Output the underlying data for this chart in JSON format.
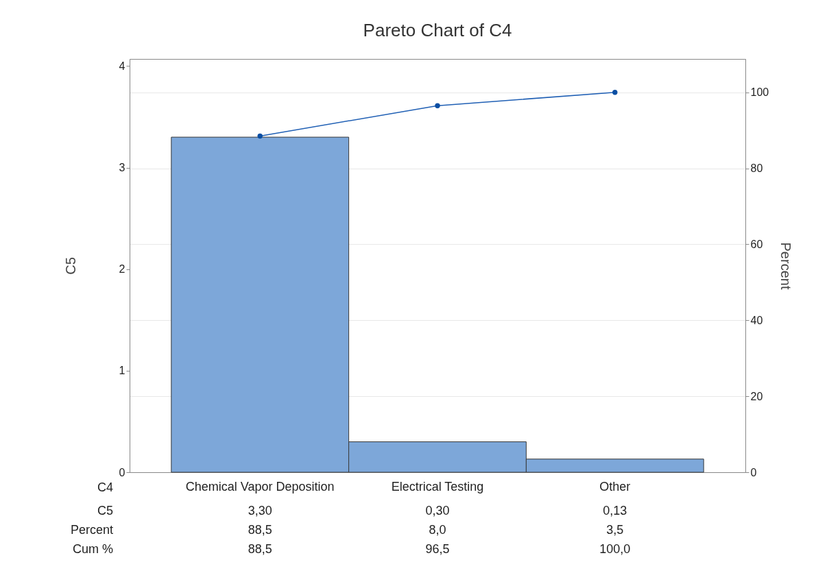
{
  "chart_data": {
    "type": "bar",
    "title": "Pareto Chart of C4",
    "xlabel": "C4",
    "ylabel": "C5",
    "y2label": "Percent",
    "categories": [
      "Chemical Vapor Deposition",
      "Electrical Testing",
      "Other"
    ],
    "series": [
      {
        "color": "#7da7d9",
        "values": [
          3.3,
          0.3,
          0.13
        ],
        "value_labels": [
          "3,30",
          "0,30",
          "0,13"
        ]
      },
      {
        "type": "line",
        "axis": "y2",
        "color": "#1f5fb4",
        "values": [
          88.5,
          96.5,
          100
        ],
        "value_labels": [
          "88,5",
          "96,5",
          "100,0"
        ]
      }
    ],
    "annotations": [
      "C5",
      "Percent",
      "Cum %",
      "88,5",
      "8,0",
      "3,5"
    ],
    "ylim": [
      0,
      4.07
    ],
    "yticks": [
      0,
      1,
      2,
      3,
      4
    ],
    "y2lim": [
      0,
      108.8
    ],
    "y2ticks": [
      0,
      20,
      40,
      60,
      80,
      100
    ],
    "grid": true,
    "marker": "circle"
  }
}
